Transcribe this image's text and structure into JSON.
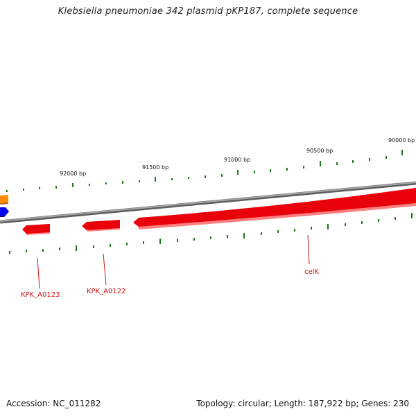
{
  "title": "Klebsiella pneumoniae 342 plasmid pKP187, complete sequence",
  "footer": {
    "accession": "Accession: NC_011282",
    "summary": "Topology: circular; Length: 187,922 bp; Genes: 230"
  },
  "colors": {
    "backbone": "#8a8a8a",
    "tick": "#1a7a1a",
    "gene_forward": "#e8000b",
    "gene_label": "#cc1111",
    "orange_feature": "#ff8c00",
    "blue_feature": "#0000ee"
  },
  "ticks": {
    "labels": [
      {
        "bp": 92000,
        "text": "92000 bp"
      },
      {
        "bp": 91500,
        "text": "91500 bp"
      },
      {
        "bp": 91000,
        "text": "91000 bp"
      },
      {
        "bp": 90500,
        "text": "90500 bp"
      },
      {
        "bp": 90000,
        "text": "90000 bp"
      }
    ]
  },
  "genes": [
    {
      "name": "KPK_A0123",
      "label": "KPK_A0123",
      "strand": "reverse"
    },
    {
      "name": "KPK_A0122",
      "label": "KPK_A0122",
      "strand": "reverse"
    },
    {
      "name": "celK",
      "label": "celK",
      "strand": "reverse"
    }
  ]
}
